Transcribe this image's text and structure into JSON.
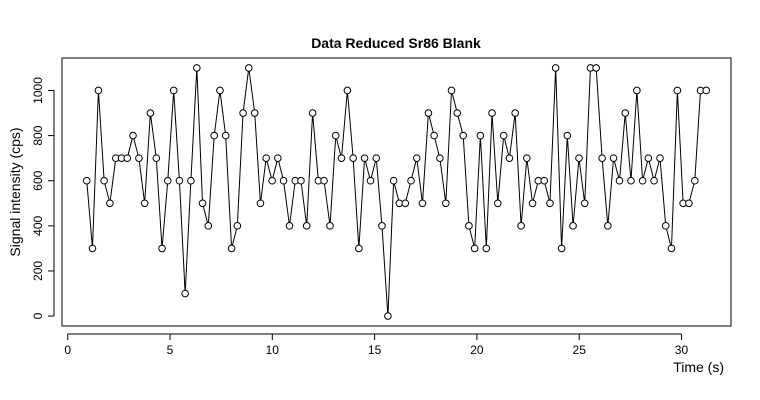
{
  "chart_data": {
    "type": "line",
    "title": "Data Reduced Sr86 Blank",
    "x_label": "Time (s)",
    "y_label": "Signal intensity (cps)",
    "color": "#000000",
    "x": [
      0.93,
      1.21,
      1.5,
      1.78,
      2.06,
      2.35,
      2.63,
      2.91,
      3.19,
      3.48,
      3.76,
      4.04,
      4.33,
      4.61,
      4.89,
      5.18,
      5.46,
      5.74,
      6.02,
      6.31,
      6.59,
      6.87,
      7.16,
      7.44,
      7.72,
      8.01,
      8.29,
      8.57,
      8.85,
      9.14,
      9.42,
      9.7,
      9.99,
      10.27,
      10.55,
      10.84,
      11.12,
      11.4,
      11.68,
      11.97,
      12.25,
      12.53,
      12.82,
      13.1,
      13.38,
      13.67,
      13.95,
      14.23,
      14.51,
      14.8,
      15.08,
      15.36,
      15.65,
      15.93,
      16.21,
      16.5,
      16.78,
      17.06,
      17.34,
      17.63,
      17.91,
      18.19,
      18.48,
      18.76,
      19.04,
      19.33,
      19.61,
      19.89,
      20.17,
      20.46,
      20.74,
      21.02,
      21.31,
      21.59,
      21.87,
      22.16,
      22.44,
      22.72,
      23.0,
      23.29,
      23.57,
      23.85,
      24.14,
      24.42,
      24.7,
      24.99,
      25.27,
      25.55,
      25.83,
      26.12,
      26.4,
      26.68,
      26.97,
      27.25,
      27.53,
      27.82,
      28.1,
      28.38,
      28.66,
      28.95,
      29.23,
      29.51,
      29.8,
      30.08,
      30.36,
      30.65,
      30.93,
      31.21
    ],
    "values": [
      600,
      300,
      1000,
      600,
      500,
      700,
      700,
      700,
      800,
      700,
      500,
      900,
      700,
      300,
      600,
      1000,
      600,
      100,
      600,
      1100,
      500,
      400,
      800,
      1000,
      800,
      300,
      400,
      900,
      1100,
      900,
      500,
      700,
      600,
      700,
      600,
      400,
      600,
      600,
      400,
      900,
      600,
      600,
      400,
      800,
      700,
      1000,
      700,
      300,
      700,
      600,
      700,
      400,
      0,
      600,
      500,
      500,
      600,
      700,
      500,
      900,
      800,
      700,
      500,
      1000,
      900,
      800,
      400,
      300,
      800,
      300,
      900,
      500,
      800,
      700,
      900,
      400,
      700,
      500,
      600,
      600,
      500,
      1100,
      300,
      800,
      400,
      700,
      500,
      1100,
      1100,
      700,
      400,
      700,
      600,
      900,
      600,
      1000,
      600,
      700,
      600,
      700,
      400,
      300,
      1000,
      500,
      500,
      600,
      1000,
      1000
    ],
    "xlim": [
      -0.28,
      32.42
    ],
    "ylim": [
      -44,
      1144
    ],
    "xticks": [
      0,
      5,
      10,
      15,
      20,
      25,
      30
    ],
    "yticks": [
      0,
      200,
      400,
      600,
      800,
      1000
    ]
  }
}
